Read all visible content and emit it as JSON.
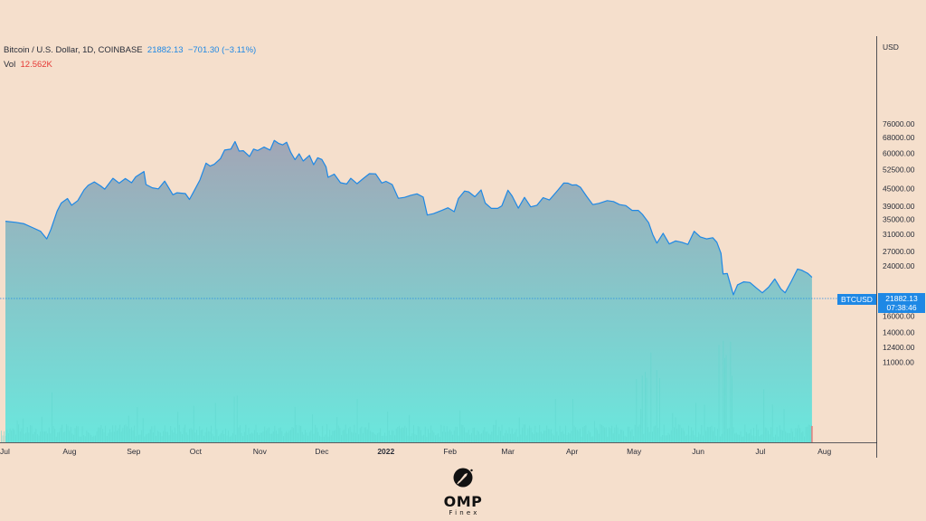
{
  "legend": {
    "symbol": "Bitcoin / U.S. Dollar, 1D, COINBASE",
    "last": "21882.13",
    "change": "−701.30 (−3.11%)",
    "vol_label": "Vol",
    "vol_value": "12.562K"
  },
  "price_axis_title": "USD",
  "series_tag": "BTCUSD",
  "last_price": "21882.13",
  "countdown": "07:38:46",
  "logo": {
    "name": "OMP",
    "sub": "Finex"
  },
  "colors": {
    "line": "#1e88e5",
    "fill_top": "#a0a6b5",
    "fill_bottom": "#6ee6dc",
    "background": "#f5dfcc"
  },
  "chart_data": {
    "type": "area",
    "y_scale": "log",
    "y_ticks": [
      "76000.00",
      "68000.00",
      "60000.00",
      "52500.00",
      "45000.00",
      "39000.00",
      "35000.00",
      "31000.00",
      "27000.00",
      "24000.00",
      "18000.00",
      "16000.00",
      "14000.00",
      "12400.00",
      "11000.00"
    ],
    "y_tick_values": [
      76000,
      68000,
      60000,
      52500,
      45000,
      39000,
      35000,
      31000,
      27000,
      24000,
      18000,
      16000,
      14000,
      12400,
      11000
    ],
    "x_ticks": [
      {
        "label": "Jul",
        "date": "2021-07-01"
      },
      {
        "label": "Aug",
        "date": "2021-08-01"
      },
      {
        "label": "Sep",
        "date": "2021-09-01"
      },
      {
        "label": "Oct",
        "date": "2021-10-01"
      },
      {
        "label": "Nov",
        "date": "2021-11-01"
      },
      {
        "label": "Dec",
        "date": "2021-12-01"
      },
      {
        "label": "2022",
        "date": "2022-01-01",
        "bold": true
      },
      {
        "label": "Feb",
        "date": "2022-02-01"
      },
      {
        "label": "Mar",
        "date": "2022-03-01"
      },
      {
        "label": "Apr",
        "date": "2022-04-01"
      },
      {
        "label": "May",
        "date": "2022-05-01"
      },
      {
        "label": "Jun",
        "date": "2022-06-01"
      },
      {
        "label": "Jul",
        "date": "2022-07-01"
      },
      {
        "label": "Aug",
        "date": "2022-08-01"
      }
    ],
    "x_range": [
      "2021-07-01",
      "2022-08-01"
    ],
    "series": [
      {
        "values": [
          [
            "2021-07-01",
            34500
          ],
          [
            "2021-07-06",
            34200
          ],
          [
            "2021-07-10",
            33800
          ],
          [
            "2021-07-14",
            32800
          ],
          [
            "2021-07-18",
            31800
          ],
          [
            "2021-07-21",
            29900
          ],
          [
            "2021-07-23",
            32300
          ],
          [
            "2021-07-26",
            37500
          ],
          [
            "2021-07-28",
            40000
          ],
          [
            "2021-07-31",
            41500
          ],
          [
            "2021-08-02",
            39300
          ],
          [
            "2021-08-05",
            40800
          ],
          [
            "2021-08-08",
            44500
          ],
          [
            "2021-08-10",
            46200
          ],
          [
            "2021-08-13",
            47500
          ],
          [
            "2021-08-16",
            46000
          ],
          [
            "2021-08-18",
            44800
          ],
          [
            "2021-08-22",
            48900
          ],
          [
            "2021-08-25",
            47000
          ],
          [
            "2021-08-28",
            48800
          ],
          [
            "2021-08-31",
            47200
          ],
          [
            "2021-09-02",
            49500
          ],
          [
            "2021-09-06",
            51700
          ],
          [
            "2021-09-07",
            46500
          ],
          [
            "2021-09-10",
            45300
          ],
          [
            "2021-09-13",
            44900
          ],
          [
            "2021-09-16",
            47800
          ],
          [
            "2021-09-20",
            42800
          ],
          [
            "2021-09-22",
            43500
          ],
          [
            "2021-09-26",
            43200
          ],
          [
            "2021-09-28",
            41200
          ],
          [
            "2021-09-30",
            43800
          ],
          [
            "2021-10-03",
            48200
          ],
          [
            "2021-10-06",
            55300
          ],
          [
            "2021-10-08",
            54000
          ],
          [
            "2021-10-10",
            54800
          ],
          [
            "2021-10-13",
            57400
          ],
          [
            "2021-10-15",
            61500
          ],
          [
            "2021-10-18",
            62000
          ],
          [
            "2021-10-20",
            65900
          ],
          [
            "2021-10-22",
            61000
          ],
          [
            "2021-10-24",
            61200
          ],
          [
            "2021-10-27",
            58400
          ],
          [
            "2021-10-29",
            62000
          ],
          [
            "2021-10-31",
            61300
          ],
          [
            "2021-11-03",
            63000
          ],
          [
            "2021-11-06",
            61500
          ],
          [
            "2021-11-08",
            66500
          ],
          [
            "2021-11-10",
            65000
          ],
          [
            "2021-11-12",
            64200
          ],
          [
            "2021-11-14",
            65500
          ],
          [
            "2021-11-16",
            60300
          ],
          [
            "2021-11-18",
            56900
          ],
          [
            "2021-11-20",
            59700
          ],
          [
            "2021-11-22",
            56300
          ],
          [
            "2021-11-25",
            58900
          ],
          [
            "2021-11-27",
            54600
          ],
          [
            "2021-11-29",
            57800
          ],
          [
            "2021-12-01",
            57000
          ],
          [
            "2021-12-03",
            53700
          ],
          [
            "2021-12-04",
            49300
          ],
          [
            "2021-12-07",
            50600
          ],
          [
            "2021-12-10",
            47200
          ],
          [
            "2021-12-13",
            46700
          ],
          [
            "2021-12-15",
            48900
          ],
          [
            "2021-12-18",
            46800
          ],
          [
            "2021-12-21",
            48800
          ],
          [
            "2021-12-24",
            50800
          ],
          [
            "2021-12-27",
            50700
          ],
          [
            "2021-12-30",
            47100
          ],
          [
            "2022-01-01",
            47700
          ],
          [
            "2022-01-04",
            46500
          ],
          [
            "2022-01-07",
            41600
          ],
          [
            "2022-01-10",
            41900
          ],
          [
            "2022-01-13",
            42600
          ],
          [
            "2022-01-16",
            43100
          ],
          [
            "2022-01-19",
            42000
          ],
          [
            "2022-01-21",
            36300
          ],
          [
            "2022-01-24",
            36700
          ],
          [
            "2022-01-28",
            37700
          ],
          [
            "2022-01-31",
            38500
          ],
          [
            "2022-02-03",
            37300
          ],
          [
            "2022-02-05",
            41500
          ],
          [
            "2022-02-08",
            44100
          ],
          [
            "2022-02-10",
            43800
          ],
          [
            "2022-02-13",
            42100
          ],
          [
            "2022-02-16",
            44500
          ],
          [
            "2022-02-18",
            40000
          ],
          [
            "2022-02-21",
            38300
          ],
          [
            "2022-02-24",
            38300
          ],
          [
            "2022-02-26",
            39100
          ],
          [
            "2022-03-01",
            44400
          ],
          [
            "2022-03-03",
            42400
          ],
          [
            "2022-03-06",
            38400
          ],
          [
            "2022-03-09",
            41900
          ],
          [
            "2022-03-12",
            38800
          ],
          [
            "2022-03-15",
            39300
          ],
          [
            "2022-03-18",
            41800
          ],
          [
            "2022-03-21",
            41000
          ],
          [
            "2022-03-25",
            44300
          ],
          [
            "2022-03-28",
            47100
          ],
          [
            "2022-03-30",
            47000
          ],
          [
            "2022-04-01",
            46300
          ],
          [
            "2022-04-03",
            46400
          ],
          [
            "2022-04-05",
            45500
          ],
          [
            "2022-04-08",
            42300
          ],
          [
            "2022-04-11",
            39500
          ],
          [
            "2022-04-14",
            39900
          ],
          [
            "2022-04-18",
            40800
          ],
          [
            "2022-04-21",
            40500
          ],
          [
            "2022-04-24",
            39500
          ],
          [
            "2022-04-27",
            39200
          ],
          [
            "2022-04-30",
            37700
          ],
          [
            "2022-05-03",
            37700
          ],
          [
            "2022-05-05",
            36500
          ],
          [
            "2022-05-08",
            34100
          ],
          [
            "2022-05-10",
            31000
          ],
          [
            "2022-05-12",
            28900
          ],
          [
            "2022-05-15",
            31300
          ],
          [
            "2022-05-18",
            28700
          ],
          [
            "2022-05-21",
            29400
          ],
          [
            "2022-05-24",
            29100
          ],
          [
            "2022-05-27",
            28600
          ],
          [
            "2022-05-30",
            31800
          ],
          [
            "2022-06-02",
            30400
          ],
          [
            "2022-06-05",
            29900
          ],
          [
            "2022-06-08",
            30200
          ],
          [
            "2022-06-10",
            29100
          ],
          [
            "2022-06-12",
            26600
          ],
          [
            "2022-06-13",
            22500
          ],
          [
            "2022-06-15",
            22600
          ],
          [
            "2022-06-18",
            19000
          ],
          [
            "2022-06-20",
            20600
          ],
          [
            "2022-06-23",
            21100
          ],
          [
            "2022-06-26",
            21000
          ],
          [
            "2022-06-29",
            20100
          ],
          [
            "2022-07-02",
            19300
          ],
          [
            "2022-07-05",
            20200
          ],
          [
            "2022-07-08",
            21600
          ],
          [
            "2022-07-11",
            19900
          ],
          [
            "2022-07-13",
            19300
          ],
          [
            "2022-07-16",
            21200
          ],
          [
            "2022-07-19",
            23400
          ],
          [
            "2022-07-21",
            23200
          ],
          [
            "2022-07-24",
            22600
          ],
          [
            "2022-07-26",
            21882
          ]
        ]
      }
    ],
    "volume_series": {
      "name": "Vol",
      "last": 12562
    }
  }
}
